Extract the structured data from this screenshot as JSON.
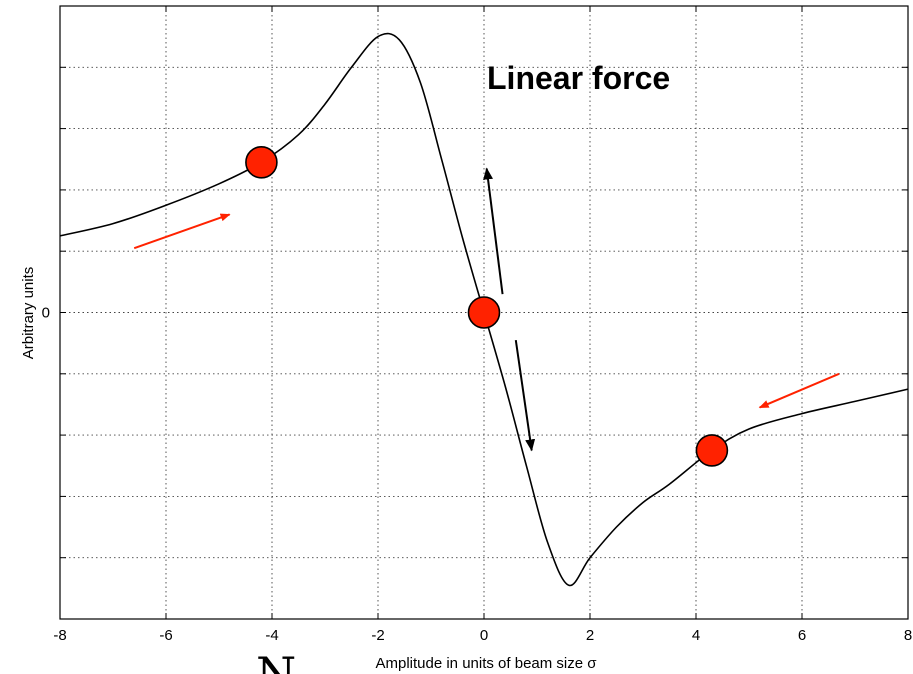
{
  "chart_data": {
    "type": "line",
    "xlabel": "Amplitude in units of beam size σ",
    "ylabel": "Arbitrary units",
    "xlim": [
      -8,
      8
    ],
    "ylim": [
      -1,
      1
    ],
    "x_ticks": [
      "-8",
      "-6",
      "-4",
      "-2",
      "0",
      "2",
      "4",
      "6",
      "8"
    ],
    "y_ticks": [
      "0"
    ],
    "grid": true,
    "annotation": "Linear force",
    "stray_text": "N",
    "series": [
      {
        "color": "#000000",
        "x": [
          -8,
          -7,
          -6,
          -5,
          -4.2,
          -3.5,
          -3,
          -2.5,
          -2,
          -1.6,
          -1.2,
          -0.8,
          -0.4,
          0,
          0.4,
          0.8,
          1.2,
          1.6,
          2,
          2.5,
          3,
          3.5,
          4.3,
          5,
          6,
          7,
          8
        ],
        "y": [
          0.25,
          0.29,
          0.35,
          0.42,
          0.49,
          0.58,
          0.68,
          0.8,
          0.9,
          0.89,
          0.75,
          0.5,
          0.24,
          0,
          -0.24,
          -0.5,
          -0.75,
          -0.89,
          -0.8,
          -0.7,
          -0.62,
          -0.56,
          -0.45,
          -0.38,
          -0.33,
          -0.29,
          -0.25
        ]
      }
    ],
    "points": [
      {
        "x": -4.2,
        "y": 0.49,
        "color": "#ff2200"
      },
      {
        "x": 0,
        "y": 0,
        "color": "#ff2200"
      },
      {
        "x": 4.3,
        "y": -0.45,
        "color": "#ff2200"
      }
    ],
    "arrows": [
      {
        "from": [
          -6.6,
          0.21
        ],
        "to": [
          -4.8,
          0.32
        ],
        "color": "#ff2200"
      },
      {
        "from": [
          6.7,
          -0.2
        ],
        "to": [
          5.2,
          -0.31
        ],
        "color": "#ff2200"
      },
      {
        "from": [
          0.35,
          0.06
        ],
        "to": [
          0.05,
          0.47
        ],
        "color": "#000000"
      },
      {
        "from": [
          0.6,
          -0.09
        ],
        "to": [
          0.9,
          -0.45
        ],
        "color": "#000000"
      }
    ]
  }
}
